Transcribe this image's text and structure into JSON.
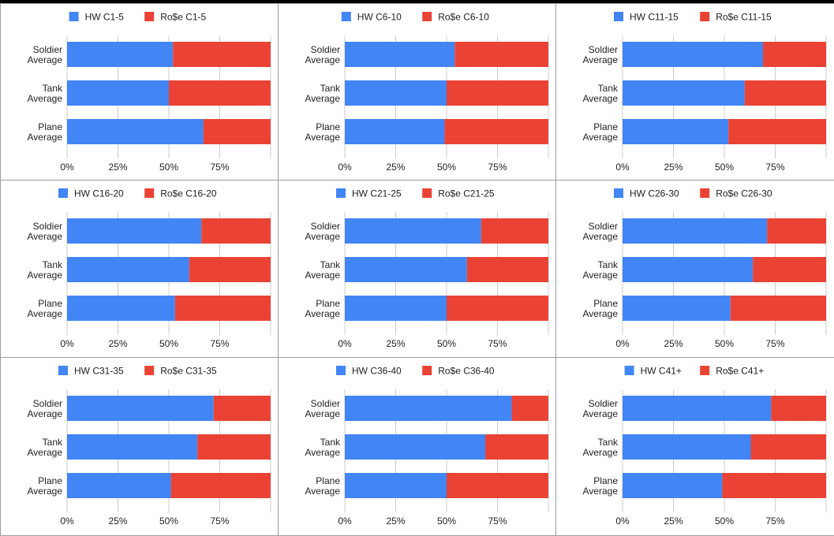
{
  "colors": {
    "hw": "#4285f4",
    "rose": "#ea4335",
    "grid": "#cccccc",
    "text": "#222222"
  },
  "chart_data": [
    {
      "type": "bar",
      "orientation": "horizontal",
      "stacked": "percent",
      "categories": [
        "Soldier Average",
        "Tank Average",
        "Plane Average"
      ],
      "series": [
        {
          "name": "HW C1-5",
          "values": [
            52,
            50,
            67
          ]
        },
        {
          "name": "Ro$e C1-5",
          "values": [
            48,
            50,
            33
          ]
        }
      ],
      "xticks": [
        "0%",
        "25%",
        "50%",
        "75%"
      ],
      "xlim": [
        0,
        100
      ],
      "legend": "top"
    },
    {
      "type": "bar",
      "orientation": "horizontal",
      "stacked": "percent",
      "categories": [
        "Soldier Average",
        "Tank Average",
        "Plane Average"
      ],
      "series": [
        {
          "name": "HW C6-10",
          "values": [
            54,
            50,
            49
          ]
        },
        {
          "name": "Ro$e C6-10",
          "values": [
            46,
            50,
            51
          ]
        }
      ],
      "xticks": [
        "0%",
        "25%",
        "50%",
        "75%"
      ],
      "xlim": [
        0,
        100
      ],
      "legend": "top"
    },
    {
      "type": "bar",
      "orientation": "horizontal",
      "stacked": "percent",
      "categories": [
        "Soldier Average",
        "Tank Average",
        "Plane Average"
      ],
      "series": [
        {
          "name": "HW C11-15",
          "values": [
            69,
            60,
            52
          ]
        },
        {
          "name": "Ro$e C11-15",
          "values": [
            31,
            40,
            48
          ]
        }
      ],
      "xticks": [
        "0%",
        "25%",
        "50%",
        "75%"
      ],
      "xlim": [
        0,
        100
      ],
      "legend": "top"
    },
    {
      "type": "bar",
      "orientation": "horizontal",
      "stacked": "percent",
      "categories": [
        "Soldier Average",
        "Tank Average",
        "Plane Average"
      ],
      "series": [
        {
          "name": "HW C16-20",
          "values": [
            66,
            60,
            53
          ]
        },
        {
          "name": "Ro$e C16-20",
          "values": [
            34,
            40,
            47
          ]
        }
      ],
      "xticks": [
        "0%",
        "25%",
        "50%",
        "75%"
      ],
      "xlim": [
        0,
        100
      ],
      "legend": "top"
    },
    {
      "type": "bar",
      "orientation": "horizontal",
      "stacked": "percent",
      "categories": [
        "Soldier Average",
        "Tank Average",
        "Plane Average"
      ],
      "series": [
        {
          "name": "HW C21-25",
          "values": [
            67,
            60,
            50
          ]
        },
        {
          "name": "Ro$e C21-25",
          "values": [
            33,
            40,
            50
          ]
        }
      ],
      "xticks": [
        "0%",
        "25%",
        "50%",
        "75%"
      ],
      "xlim": [
        0,
        100
      ],
      "legend": "top"
    },
    {
      "type": "bar",
      "orientation": "horizontal",
      "stacked": "percent",
      "categories": [
        "Soldier Average",
        "Tank Average",
        "Plane Average"
      ],
      "series": [
        {
          "name": "HW C26-30",
          "values": [
            71,
            64,
            53
          ]
        },
        {
          "name": "Ro$e C26-30",
          "values": [
            29,
            36,
            47
          ]
        }
      ],
      "xticks": [
        "0%",
        "25%",
        "50%",
        "75%"
      ],
      "xlim": [
        0,
        100
      ],
      "legend": "top"
    },
    {
      "type": "bar",
      "orientation": "horizontal",
      "stacked": "percent",
      "categories": [
        "Soldier Average",
        "Tank Average",
        "Plane Average"
      ],
      "series": [
        {
          "name": "HW C31-35",
          "values": [
            72,
            64,
            51
          ]
        },
        {
          "name": "Ro$e C31-35",
          "values": [
            28,
            36,
            49
          ]
        }
      ],
      "xticks": [
        "0%",
        "25%",
        "50%",
        "75%"
      ],
      "xlim": [
        0,
        100
      ],
      "legend": "top"
    },
    {
      "type": "bar",
      "orientation": "horizontal",
      "stacked": "percent",
      "categories": [
        "Soldier Average",
        "Tank Average",
        "Plane Average"
      ],
      "series": [
        {
          "name": "HW C36-40",
          "values": [
            82,
            69,
            50
          ]
        },
        {
          "name": "Ro$e C36-40",
          "values": [
            18,
            31,
            50
          ]
        }
      ],
      "xticks": [
        "0%",
        "25%",
        "50%",
        "75%"
      ],
      "xlim": [
        0,
        100
      ],
      "legend": "top"
    },
    {
      "type": "bar",
      "orientation": "horizontal",
      "stacked": "percent",
      "categories": [
        "Soldier Average",
        "Tank Average",
        "Plane Average"
      ],
      "series": [
        {
          "name": "HW C41+",
          "values": [
            73,
            63,
            49
          ]
        },
        {
          "name": "Ro$e C41+",
          "values": [
            27,
            37,
            51
          ]
        }
      ],
      "xticks": [
        "0%",
        "25%",
        "50%",
        "75%"
      ],
      "xlim": [
        0,
        100
      ],
      "legend": "top"
    }
  ]
}
